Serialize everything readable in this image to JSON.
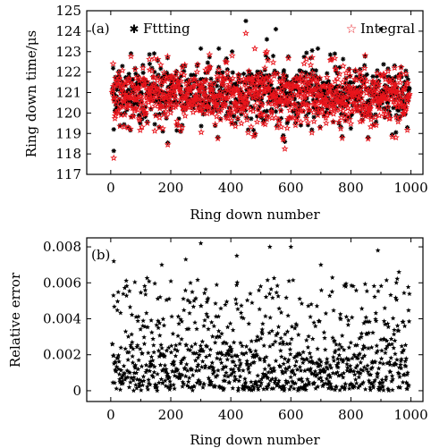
{
  "chart_data": [
    {
      "panel_label": "(a)",
      "type": "scatter",
      "xlabel": "Ring down number",
      "ylabel": "Ring down time/μs",
      "xlim": [
        -80,
        1040
      ],
      "ylim": [
        117,
        125
      ],
      "xticks": [
        0,
        200,
        400,
        600,
        800,
        1000
      ],
      "yticks": [
        117,
        118,
        119,
        120,
        121,
        122,
        123,
        124,
        125
      ],
      "legend_position": "top",
      "series": [
        {
          "name": "Fttting",
          "marker": "asterisk",
          "color": "#000000",
          "count": 1000,
          "center": 120.9,
          "spread": 1.2,
          "notable_points": [
            {
              "x": 10,
              "y": 118.15
            },
            {
              "x": 10,
              "y": 119.2
            },
            {
              "x": 190,
              "y": 118.55
            },
            {
              "x": 300,
              "y": 123.15
            },
            {
              "x": 360,
              "y": 123.15
            },
            {
              "x": 450,
              "y": 124.5
            },
            {
              "x": 480,
              "y": 118.9
            },
            {
              "x": 520,
              "y": 123.6
            },
            {
              "x": 550,
              "y": 124.1
            },
            {
              "x": 580,
              "y": 118.6
            },
            {
              "x": 690,
              "y": 123.15
            },
            {
              "x": 900,
              "y": 124.1
            },
            {
              "x": 950,
              "y": 119.05
            }
          ]
        },
        {
          "name": "Integral",
          "marker": "star-open",
          "color": "#e8141b",
          "count": 1000,
          "center": 120.8,
          "spread": 1.15,
          "notable_points": [
            {
              "x": 10,
              "y": 117.8
            },
            {
              "x": 190,
              "y": 118.45
            },
            {
              "x": 450,
              "y": 123.9
            },
            {
              "x": 480,
              "y": 123.15
            },
            {
              "x": 520,
              "y": 123.0
            },
            {
              "x": 580,
              "y": 118.25
            },
            {
              "x": 950,
              "y": 118.8
            }
          ]
        }
      ]
    },
    {
      "panel_label": "(b)",
      "type": "scatter",
      "xlabel": "Ring down number",
      "ylabel": "Relative error",
      "xlim": [
        -80,
        1040
      ],
      "ylim": [
        -0.0006,
        0.0085
      ],
      "xticks": [
        0,
        200,
        400,
        600,
        800,
        1000
      ],
      "yticks": [
        0,
        0.002,
        0.004,
        0.006,
        0.008
      ],
      "ytick_labels": [
        "0",
        "0.002",
        "0.004",
        "0.006",
        "0.008"
      ],
      "series": [
        {
          "marker": "star-filled",
          "color": "#000000",
          "count": 1000,
          "typical_range": [
            0,
            0.005
          ],
          "notable_points": [
            {
              "x": 10,
              "y": 0.0072
            },
            {
              "x": 170,
              "y": 0.007
            },
            {
              "x": 250,
              "y": 0.0073
            },
            {
              "x": 300,
              "y": 0.0082
            },
            {
              "x": 420,
              "y": 0.0075
            },
            {
              "x": 530,
              "y": 0.008
            },
            {
              "x": 600,
              "y": 0.008
            },
            {
              "x": 700,
              "y": 0.007
            },
            {
              "x": 890,
              "y": 0.0078
            },
            {
              "x": 960,
              "y": 0.0066
            }
          ]
        }
      ]
    }
  ]
}
